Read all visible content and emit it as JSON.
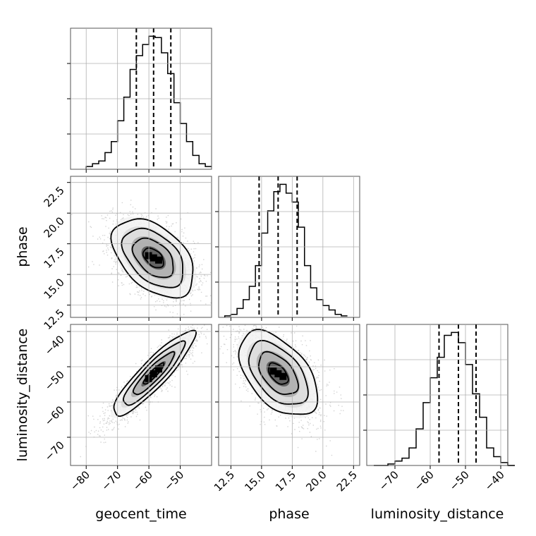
{
  "chart_data": {
    "type": "corner",
    "parameters": [
      "geocent_time",
      "phase",
      "luminosity_distance"
    ],
    "axis_labels": {
      "x": [
        "geocent_time",
        "phase",
        "luminosity_distance"
      ],
      "y": [
        "phase",
        "luminosity_distance"
      ]
    },
    "ranges": {
      "geocent_time": [
        -85,
        -40
      ],
      "phase": [
        11.5,
        23.0
      ],
      "luminosity_distance": [
        -78,
        -38
      ]
    },
    "ticks": {
      "geocent_time": [
        -80,
        -70,
        -60,
        -50
      ],
      "phase": [
        12.5,
        15.0,
        17.5,
        20.0,
        22.5
      ],
      "luminosity_distance": [
        -70,
        -60,
        -50,
        -40
      ]
    },
    "tick_labels": {
      "geocent_time": [
        "−80",
        "−70",
        "−60",
        "−50"
      ],
      "phase": [
        "12.5",
        "15.0",
        "17.5",
        "20.0",
        "22.5"
      ],
      "luminosity_distance": [
        "−70",
        "−60",
        "−50",
        "−40"
      ]
    },
    "quantiles": {
      "geocent_time": [
        -64,
        -58.5,
        -53
      ],
      "phase": [
        14.8,
        16.35,
        17.9
      ],
      "luminosity_distance": [
        -57.5,
        -52,
        -47
      ]
    },
    "histograms": {
      "geocent_time": {
        "bins": [
          -80,
          -78,
          -76,
          -74,
          -72,
          -70,
          -68,
          -66,
          -64,
          -62,
          -60,
          -58,
          -56,
          -54,
          -52,
          -50,
          -48,
          -46,
          -44,
          -42
        ],
        "counts": [
          2,
          4,
          6,
          12,
          20,
          35,
          52,
          72,
          82,
          90,
          96,
          95,
          84,
          69,
          48,
          33,
          20,
          10,
          4,
          2
        ]
      },
      "phase": {
        "bins": [
          12.0,
          12.5,
          13.0,
          13.5,
          14.0,
          14.5,
          15.0,
          15.5,
          16.0,
          16.5,
          17.0,
          17.5,
          18.0,
          18.5,
          19.0,
          19.5,
          20.0,
          20.5,
          21.0,
          21.5,
          22.0
        ],
        "counts": [
          1,
          2,
          6,
          12,
          21,
          35,
          57,
          72,
          85,
          90,
          84,
          78,
          61,
          35,
          20,
          12,
          8,
          5,
          2,
          1
        ]
      },
      "luminosity_distance": {
        "bins": [
          -76,
          -74,
          -72,
          -70,
          -68,
          -66,
          -64,
          -62,
          -60,
          -58,
          -56,
          -54,
          -52,
          -50,
          -48,
          -46,
          -44,
          -42,
          -40,
          -38
        ],
        "counts": [
          0,
          0,
          1,
          3,
          5,
          12,
          25,
          43,
          60,
          74,
          89,
          91,
          84,
          69,
          49,
          33,
          12,
          6,
          2,
          0
        ]
      }
    },
    "scatter_2d": [
      {
        "x": "geocent_time",
        "y": "phase",
        "mean": [
          -58.5,
          16.35
        ],
        "std": [
          6.5,
          1.6
        ],
        "corr": -0.45
      },
      {
        "x": "geocent_time",
        "y": "luminosity_distance",
        "mean": [
          -58.5,
          -52
        ],
        "std": [
          6.5,
          6.0
        ],
        "corr": 0.9
      },
      {
        "x": "phase",
        "y": "luminosity_distance",
        "mean": [
          16.35,
          -52
        ],
        "std": [
          1.6,
          6.0
        ],
        "corr": -0.5
      }
    ],
    "grid": true,
    "colors": {
      "hist": "#000000",
      "points": "#808080",
      "contour": "#000000",
      "grid": "#b0b0b0"
    }
  }
}
